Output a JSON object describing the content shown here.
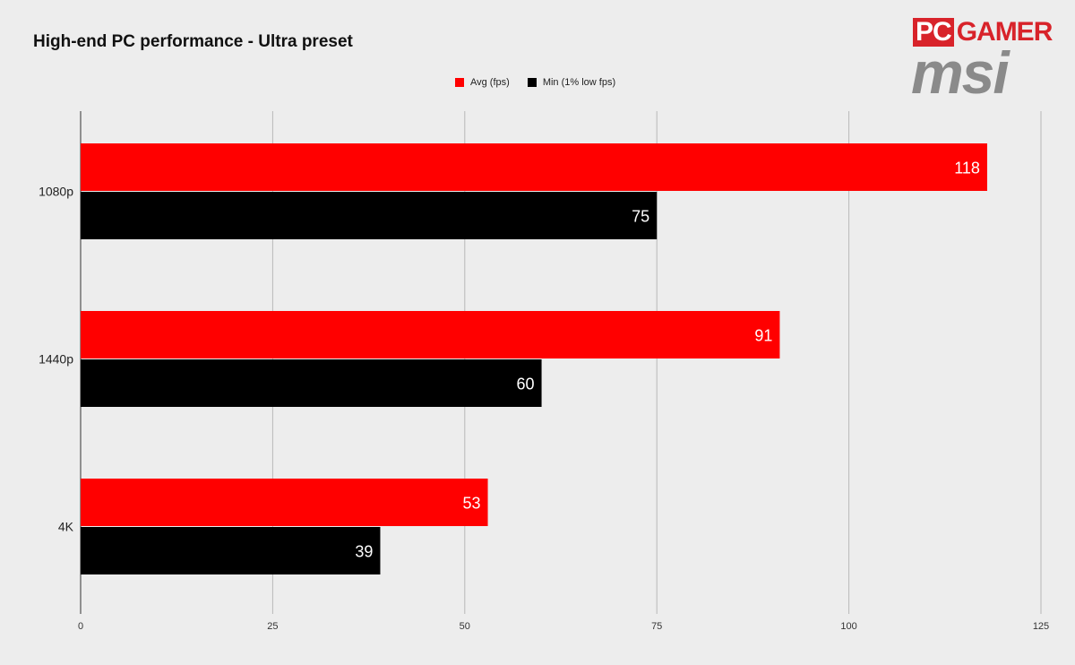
{
  "branding": {
    "pc_box": "PC",
    "pc_text": "GAMER",
    "msi": "msi"
  },
  "chart_data": {
    "type": "bar",
    "orientation": "horizontal",
    "title": "High-end PC performance - Ultra preset",
    "xlabel": "",
    "ylabel": "",
    "categories": [
      "1080p",
      "1440p",
      "4K"
    ],
    "series": [
      {
        "name": "Avg (fps)",
        "color": "#ff0000",
        "values": [
          118,
          91,
          53
        ]
      },
      {
        "name": "Min (1% low fps)",
        "color": "#000000",
        "values": [
          75,
          60,
          39
        ]
      }
    ],
    "xlim": [
      0,
      125
    ],
    "xticks": [
      0,
      25,
      50,
      75,
      100,
      125
    ],
    "grid": true,
    "legend_position": "top-center",
    "data_labels": true
  }
}
